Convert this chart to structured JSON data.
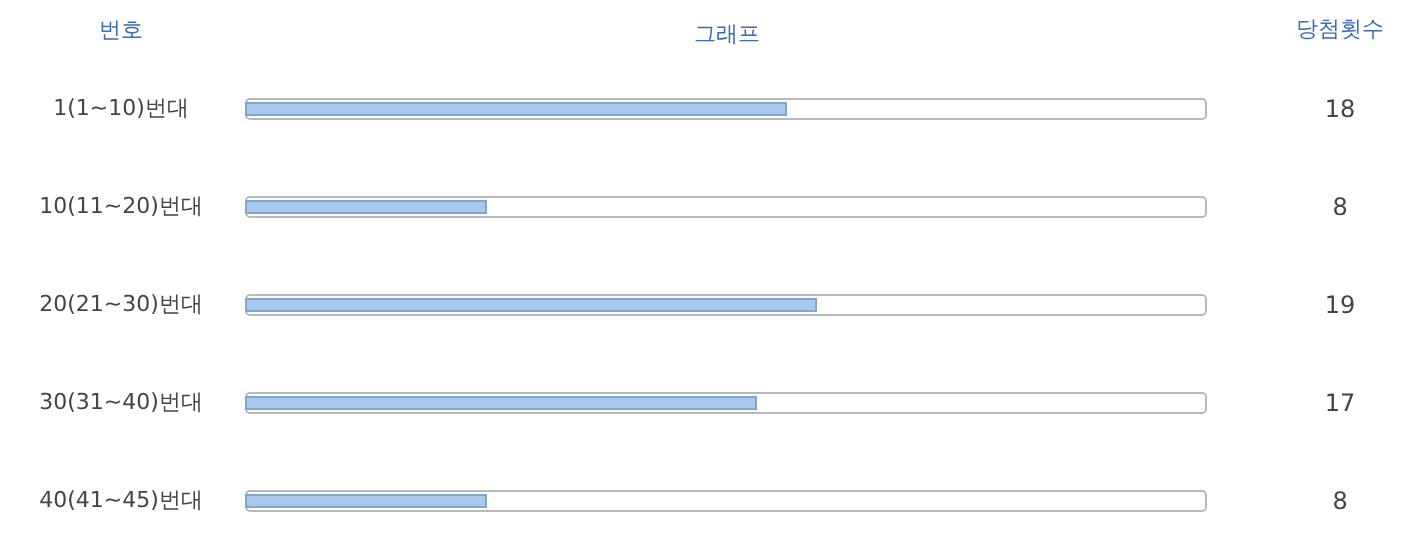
{
  "chart_data": {
    "type": "bar",
    "orientation": "horizontal",
    "xlabel": "그래프",
    "ylabel": "번호",
    "annotations": [
      "당첨횟수"
    ],
    "categories": [
      "1(1~10)번대",
      "10(11~20)번대",
      "20(21~30)번대",
      "30(31~40)번대",
      "40(41~45)번대"
    ],
    "values": [
      18,
      8,
      19,
      17,
      8
    ],
    "color": "#a9c9ea",
    "xlim": [
      0,
      32
    ],
    "data_labels": true,
    "tick_labels": "y",
    "grid": false
  }
}
